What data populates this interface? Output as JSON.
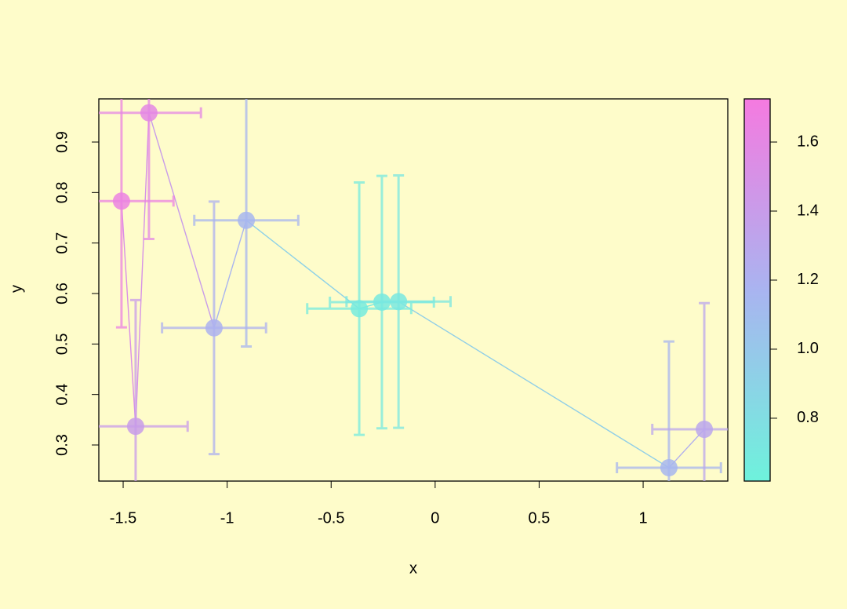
{
  "chart_data": {
    "type": "scatter",
    "xlabel": "x",
    "ylabel": "y",
    "x": [
      -1.508,
      -1.44,
      -1.376,
      -1.063,
      -0.908,
      -0.365,
      -0.256,
      -0.176,
      1.124,
      1.294
    ],
    "values": [
      0.783,
      0.337,
      0.958,
      0.532,
      0.745,
      0.57,
      0.583,
      0.584,
      0.255,
      0.331
    ],
    "xerr": [
      0.25,
      0.25,
      0.25,
      0.25,
      0.25,
      0.25,
      0.25,
      0.25,
      0.25,
      0.25
    ],
    "yerr": [
      0.25,
      0.25,
      0.25,
      0.25,
      0.25,
      0.25,
      0.25,
      0.25,
      0.25,
      0.25
    ],
    "color_values": [
      1.65,
      1.4,
      1.6,
      1.2,
      1.15,
      0.68,
      0.7,
      0.72,
      1.15,
      1.3
    ],
    "colorscale": [
      "#6ef2dc",
      "#a9b4f0",
      "#f57ae0"
    ],
    "clim": [
      0.618,
      1.725
    ],
    "cticks": [
      0.8,
      1.0,
      1.2,
      1.4,
      1.6
    ],
    "xlim": [
      -1.617,
      1.407
    ],
    "ylim": [
      0.2285,
      0.9855
    ],
    "xticks": [
      -1.5,
      -1.0,
      -0.5,
      0.0,
      0.5,
      1.0
    ],
    "yticks": [
      0.3,
      0.4,
      0.5,
      0.6,
      0.7,
      0.8,
      0.9
    ]
  }
}
